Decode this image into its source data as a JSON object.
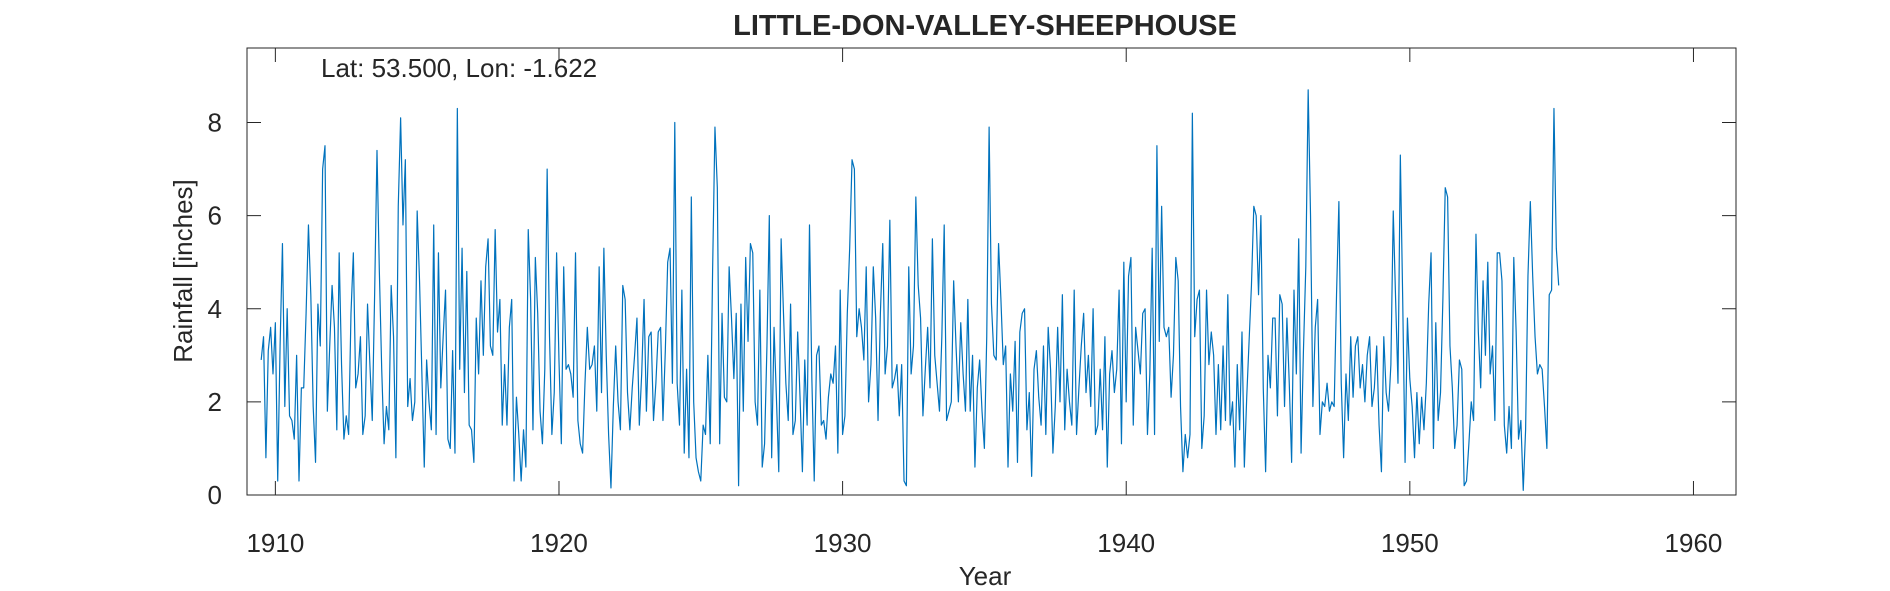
{
  "chart_data": {
    "type": "line",
    "title": "LITTLE-DON-VALLEY-SHEEPHOUSE",
    "annotation": "Lat: 53.500, Lon: -1.622",
    "xlabel": "Year",
    "ylabel": "Rainfall [inches]",
    "xlim": [
      1909,
      1961.5
    ],
    "ylim": [
      0,
      9.6
    ],
    "xticks": [
      1910,
      1920,
      1930,
      1940,
      1950,
      1960
    ],
    "xtick_labels": [
      "1910",
      "1920",
      "1930",
      "1940",
      "1950",
      "1960"
    ],
    "yticks": [
      0,
      2,
      4,
      6,
      8
    ],
    "ytick_labels": [
      "0",
      "2",
      "4",
      "6",
      "8"
    ],
    "grid": false,
    "series": [
      {
        "color": "#0072BD",
        "x_start": 1909.5,
        "x_step": 0.08333,
        "values": [
          2.9,
          3.4,
          0.8,
          3.1,
          3.6,
          2.6,
          3.7,
          0.3,
          3.2,
          5.4,
          1.9,
          4.0,
          1.7,
          1.6,
          1.2,
          3.0,
          0.3,
          2.3,
          2.3,
          3.9,
          5.8,
          4.3,
          1.9,
          0.7,
          4.1,
          3.2,
          7.0,
          7.5,
          1.8,
          3.2,
          4.5,
          3.6,
          1.4,
          5.2,
          2.8,
          1.2,
          1.7,
          1.3,
          3.9,
          5.2,
          2.3,
          2.6,
          3.4,
          1.3,
          1.7,
          4.1,
          2.8,
          1.6,
          4.3,
          7.4,
          4.8,
          2.7,
          1.1,
          1.9,
          1.4,
          4.5,
          3.4,
          0.8,
          6.2,
          8.1,
          5.8,
          7.2,
          1.9,
          2.5,
          1.6,
          2.0,
          6.1,
          4.6,
          2.6,
          0.6,
          2.9,
          2.0,
          1.4,
          5.8,
          1.3,
          5.2,
          2.3,
          3.4,
          4.4,
          1.2,
          1.0,
          3.1,
          0.9,
          8.3,
          2.7,
          5.3,
          2.2,
          4.8,
          1.5,
          1.4,
          0.7,
          3.8,
          2.6,
          4.6,
          3.0,
          4.9,
          5.5,
          3.2,
          3.0,
          5.7,
          3.5,
          4.2,
          1.5,
          2.8,
          1.5,
          3.6,
          4.2,
          0.3,
          2.1,
          1.3,
          0.3,
          1.4,
          0.6,
          5.7,
          4.2,
          1.4,
          5.1,
          3.9,
          1.8,
          1.1,
          2.7,
          7.0,
          3.4,
          1.3,
          2.2,
          5.2,
          2.9,
          1.1,
          4.9,
          2.7,
          2.8,
          2.6,
          2.1,
          5.2,
          1.6,
          1.1,
          0.9,
          2.4,
          3.6,
          2.7,
          2.8,
          3.2,
          1.8,
          4.9,
          2.2,
          5.3,
          3.0,
          1.3,
          0.15,
          1.9,
          3.2,
          2.0,
          1.4,
          4.5,
          4.2,
          2.2,
          1.4,
          2.3,
          3.0,
          3.8,
          1.5,
          2.6,
          4.2,
          1.8,
          3.4,
          3.5,
          1.6,
          2.4,
          3.5,
          3.6,
          1.6,
          3.1,
          5.0,
          5.3,
          2.4,
          8.0,
          2.4,
          1.5,
          4.4,
          0.9,
          2.7,
          0.8,
          6.4,
          2.0,
          0.8,
          0.5,
          0.3,
          1.5,
          1.3,
          3.0,
          1.1,
          4.8,
          7.9,
          6.6,
          1.1,
          3.9,
          2.1,
          2.0,
          4.9,
          3.8,
          2.5,
          3.9,
          0.2,
          4.1,
          1.8,
          5.1,
          3.3,
          5.4,
          5.2,
          2.0,
          1.5,
          4.4,
          0.6,
          1.1,
          3.2,
          6.0,
          0.8,
          3.6,
          2.1,
          0.5,
          5.5,
          3.9,
          2.4,
          1.6,
          4.1,
          1.3,
          1.6,
          3.5,
          2.1,
          0.5,
          2.9,
          1.5,
          5.8,
          2.5,
          0.3,
          3.0,
          3.2,
          1.5,
          1.6,
          1.2,
          2.1,
          2.6,
          2.4,
          3.2,
          0.9,
          4.4,
          1.3,
          1.7,
          3.9,
          5.3,
          7.2,
          7.0,
          3.4,
          4.0,
          3.6,
          2.9,
          4.9,
          2.0,
          2.8,
          4.9,
          3.8,
          1.6,
          3.9,
          5.4,
          2.6,
          3.2,
          5.9,
          2.3,
          2.5,
          2.8,
          1.7,
          2.8,
          0.3,
          0.2,
          4.9,
          2.6,
          3.2,
          6.4,
          4.5,
          3.8,
          1.7,
          2.7,
          3.6,
          2.3,
          5.5,
          3.0,
          2.4,
          1.8,
          3.4,
          5.8,
          1.6,
          1.8,
          2.0,
          4.6,
          3.2,
          2.0,
          3.7,
          2.6,
          1.8,
          4.2,
          1.8,
          3.0,
          0.6,
          2.3,
          2.9,
          1.8,
          1.0,
          3.4,
          7.9,
          4.1,
          3.0,
          2.9,
          5.4,
          4.2,
          2.8,
          3.2,
          0.6,
          2.6,
          1.8,
          3.3,
          0.7,
          3.5,
          3.9,
          4.0,
          1.4,
          2.2,
          0.4,
          2.7,
          3.1,
          2.1,
          1.5,
          3.2,
          1.3,
          3.6,
          2.7,
          0.9,
          1.9,
          3.6,
          2.0,
          4.3,
          1.4,
          2.7,
          2.0,
          1.5,
          4.4,
          1.3,
          2.3,
          3.2,
          3.9,
          2.2,
          3.0,
          1.9,
          4.0,
          1.3,
          1.5,
          2.7,
          1.4,
          3.4,
          0.6,
          2.6,
          3.1,
          2.2,
          2.7,
          4.4,
          1.1,
          5.0,
          2.0,
          4.7,
          5.1,
          1.5,
          3.6,
          3.1,
          2.6,
          3.9,
          4.0,
          1.3,
          2.6,
          5.3,
          1.3,
          7.5,
          3.3,
          6.2,
          3.6,
          3.4,
          3.6,
          2.1,
          3.0,
          5.1,
          4.6,
          1.9,
          0.5,
          1.3,
          0.8,
          1.3,
          8.2,
          3.4,
          4.2,
          4.4,
          1.0,
          1.7,
          4.4,
          2.8,
          3.5,
          3.0,
          1.3,
          2.8,
          1.4,
          3.2,
          1.6,
          4.3,
          1.5,
          2.0,
          0.6,
          2.8,
          1.4,
          3.5,
          0.6,
          2.1,
          3.3,
          4.5,
          6.2,
          6.0,
          4.3,
          6.0,
          2.3,
          0.5,
          3.0,
          2.3,
          3.8,
          3.8,
          1.7,
          4.3,
          4.1,
          1.9,
          3.8,
          2.4,
          0.7,
          4.4,
          2.6,
          5.5,
          0.9,
          3.1,
          4.9,
          8.7,
          6.0,
          1.9,
          3.6,
          4.2,
          1.3,
          2.0,
          1.9,
          2.4,
          1.8,
          2.0,
          1.9,
          4.3,
          6.3,
          2.4,
          0.8,
          2.6,
          1.6,
          3.4,
          2.1,
          3.2,
          3.4,
          2.3,
          2.8,
          2.0,
          3.0,
          3.4,
          1.9,
          2.3,
          3.2,
          1.5,
          0.5,
          3.4,
          2.2,
          1.8,
          2.8,
          6.1,
          4.2,
          2.4,
          7.3,
          4.2,
          0.7,
          3.8,
          2.5,
          1.9,
          0.8,
          2.2,
          1.1,
          2.1,
          1.4,
          2.4,
          4.1,
          5.2,
          1.0,
          3.7,
          1.6,
          2.2,
          4.2,
          6.6,
          6.4,
          3.2,
          2.3,
          1.0,
          1.5,
          2.9,
          2.7,
          0.2,
          0.3,
          1.1,
          2.0,
          1.6,
          5.6,
          3.5,
          2.3,
          4.6,
          3.0,
          5.0,
          2.6,
          3.2,
          1.6,
          5.2,
          5.2,
          4.6,
          1.5,
          0.9,
          1.9,
          1.0,
          5.1,
          3.5,
          1.2,
          1.6,
          0.1,
          1.4,
          4.7,
          6.3,
          4.7,
          3.4,
          2.6,
          2.8,
          2.7,
          1.9,
          1.0,
          4.3,
          4.4,
          8.3,
          5.3,
          4.5
        ]
      }
    ]
  }
}
